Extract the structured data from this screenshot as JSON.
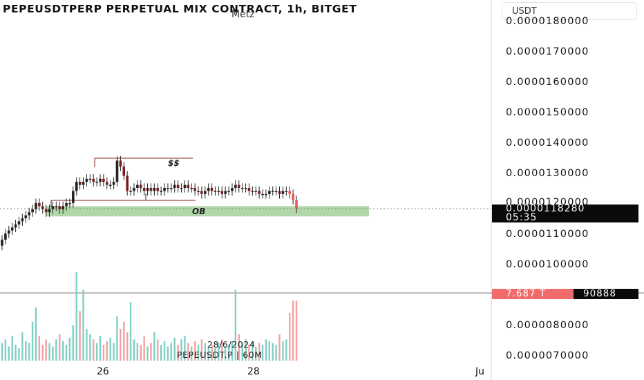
{
  "title": "PEPEUSDTPERP PERPETUAL MIX CONTRACT, 1h, BITGET",
  "subtitle": "Metz",
  "currency_selector": "USDT",
  "watermark": {
    "date": "28/6/2024",
    "symbol": "PEPEUSDT.P | 60M"
  },
  "current_price": {
    "value": "0.0000118280",
    "countdown": "05:35"
  },
  "volume_tags": {
    "red": "7.687 T",
    "black": "90888"
  },
  "annotations": {
    "liquidity": "$$",
    "order_block": "OB"
  },
  "x_axis_labels": [
    "26",
    "28",
    "Ju"
  ],
  "colors": {
    "up": "#26a69a",
    "down": "#ef5350",
    "candle_body": "#111111",
    "ob_zone": "#a8d3a0",
    "box_line": "#8b1a1a",
    "vol_up": "#7fcfc4",
    "vol_down": "#f4a1a1"
  },
  "chart_data": {
    "type": "candlestick",
    "title": "PEPEUSDTPERP PERPETUAL MIX CONTRACT, 1h, BITGET",
    "price_axis": {
      "labels": [
        "0.0000180000",
        "0.0000170000",
        "0.0000160000",
        "0.0000150000",
        "0.0000140000",
        "0.0000130000",
        "0.0000120000",
        "0.0000110000",
        "0.0000100000",
        "0.0000080000",
        "0.0000070000"
      ],
      "range": [
        6.5e-06,
        1.83e-05
      ]
    },
    "x_axis_labels": [
      "26",
      "28",
      "Ju"
    ],
    "candles_close": [
      1.08e-05,
      1.1e-05,
      1.11e-05,
      1.12e-05,
      1.13e-05,
      1.14e-05,
      1.15e-05,
      1.16e-05,
      1.17e-05,
      1.18e-05,
      1.2e-05,
      1.19e-05,
      1.18e-05,
      1.17e-05,
      1.18e-05,
      1.19e-05,
      1.19e-05,
      1.18e-05,
      1.19e-05,
      1.2e-05,
      1.2e-05,
      1.24e-05,
      1.27e-05,
      1.26e-05,
      1.27e-05,
      1.28e-05,
      1.28e-05,
      1.27e-05,
      1.27e-05,
      1.28e-05,
      1.27e-05,
      1.26e-05,
      1.26e-05,
      1.27e-05,
      1.34e-05,
      1.32e-05,
      1.29e-05,
      1.24e-05,
      1.24e-05,
      1.25e-05,
      1.26e-05,
      1.25e-05,
      1.24e-05,
      1.25e-05,
      1.24e-05,
      1.25e-05,
      1.24e-05,
      1.24e-05,
      1.25e-05,
      1.25e-05,
      1.25e-05,
      1.26e-05,
      1.25e-05,
      1.25e-05,
      1.26e-05,
      1.25e-05,
      1.25e-05,
      1.24e-05,
      1.24e-05,
      1.23e-05,
      1.24e-05,
      1.25e-05,
      1.24e-05,
      1.24e-05,
      1.24e-05,
      1.23e-05,
      1.24e-05,
      1.24e-05,
      1.25e-05,
      1.26e-05,
      1.25e-05,
      1.25e-05,
      1.25e-05,
      1.24e-05,
      1.24e-05,
      1.24e-05,
      1.23e-05,
      1.23e-05,
      1.23e-05,
      1.24e-05,
      1.24e-05,
      1.24e-05,
      1.23e-05,
      1.24e-05,
      1.24e-05,
      1.23e-05,
      1.21e-05,
      1.183e-05
    ],
    "volumes": [
      10,
      12,
      8,
      14,
      9,
      7,
      16,
      11,
      10,
      22,
      30,
      14,
      9,
      12,
      10,
      8,
      12,
      15,
      11,
      9,
      13,
      20,
      50,
      28,
      40,
      18,
      15,
      12,
      10,
      14,
      9,
      11,
      13,
      10,
      25,
      18,
      22,
      16,
      33,
      12,
      10,
      9,
      14,
      8,
      10,
      16,
      12,
      9,
      11,
      8,
      10,
      13,
      9,
      12,
      14,
      10,
      8,
      11,
      9,
      12,
      10,
      8,
      9,
      7,
      10,
      12,
      8,
      9,
      11,
      40,
      15,
      10,
      12,
      9,
      11,
      8,
      10,
      9,
      12,
      11,
      10,
      9,
      15,
      11,
      12,
      27,
      34,
      34
    ],
    "zones": [
      {
        "label": "$$",
        "price": 1.35e-05
      },
      {
        "label": "OB",
        "price_top": 1.19e-05,
        "price_bottom": 1.17e-05
      }
    ]
  }
}
